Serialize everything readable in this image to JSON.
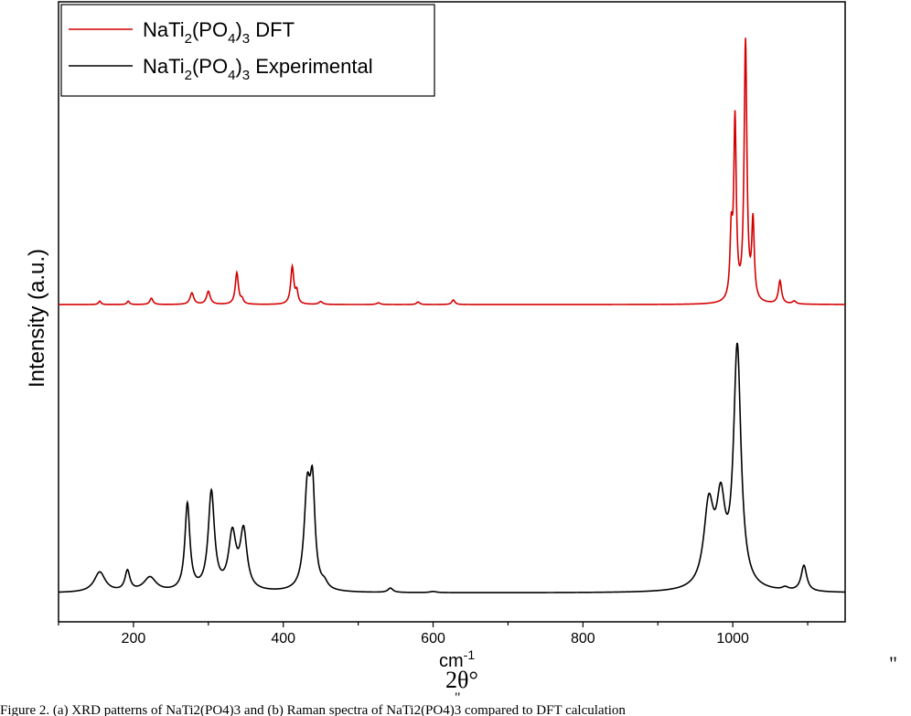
{
  "chart_data": {
    "type": "line",
    "xlabel": "cm",
    "xlabel_sup": "-1",
    "ylabel": "Intensity (a.u.)",
    "xlim": [
      100,
      1150
    ],
    "ylim": [
      0,
      2.15
    ],
    "x_ticks": [
      200,
      400,
      600,
      800,
      1000
    ],
    "y_ticks_labeled": false,
    "grid": false,
    "legend_position": "top-left",
    "series": [
      {
        "name_parts": [
          "NaTi",
          "2",
          "(PO",
          "4",
          ")",
          "3",
          " DFT"
        ],
        "color": "#d40000",
        "baseline": 1.1,
        "peaks": [
          [
            155,
            0.012,
            2
          ],
          [
            193,
            0.012,
            2
          ],
          [
            224,
            0.022,
            2.5
          ],
          [
            278,
            0.04,
            3
          ],
          [
            300,
            0.045,
            3
          ],
          [
            338,
            0.11,
            2.5
          ],
          [
            345,
            0.015,
            2
          ],
          [
            412,
            0.13,
            2.5
          ],
          [
            418,
            0.04,
            2
          ],
          [
            450,
            0.01,
            3
          ],
          [
            527,
            0.006,
            3
          ],
          [
            580,
            0.009,
            2.5
          ],
          [
            627,
            0.016,
            2.5
          ],
          [
            998,
            0.22,
            2
          ],
          [
            1003,
            0.62,
            2
          ],
          [
            1017,
            0.9,
            2.2
          ],
          [
            1027,
            0.27,
            2
          ],
          [
            1063,
            0.08,
            2.5
          ],
          [
            1082,
            0.01,
            3
          ]
        ],
        "points": [
          [
            100,
            1.1
          ],
          [
            155,
            1.112
          ],
          [
            193,
            1.112
          ],
          [
            224,
            1.122
          ],
          [
            278,
            1.14
          ],
          [
            300,
            1.145
          ],
          [
            338,
            1.21
          ],
          [
            412,
            1.23
          ],
          [
            627,
            1.116
          ],
          [
            998,
            1.32
          ],
          [
            1003,
            1.72
          ],
          [
            1017,
            2.0
          ],
          [
            1027,
            1.37
          ],
          [
            1063,
            1.18
          ],
          [
            1150,
            1.1
          ]
        ]
      },
      {
        "name_parts": [
          "NaTi",
          "2",
          "(PO",
          "4",
          ")",
          "3",
          " Experimental"
        ],
        "color": "#000000",
        "baseline": 0.1,
        "peaks": [
          [
            155,
            0.07,
            9
          ],
          [
            192,
            0.07,
            4
          ],
          [
            222,
            0.05,
            10
          ],
          [
            272,
            0.3,
            4
          ],
          [
            304,
            0.34,
            5
          ],
          [
            332,
            0.19,
            6
          ],
          [
            347,
            0.2,
            5.5
          ],
          [
            432,
            0.33,
            5
          ],
          [
            439,
            0.32,
            4
          ],
          [
            455,
            0.02,
            5
          ],
          [
            543,
            0.015,
            4
          ],
          [
            600,
            0.004,
            5
          ],
          [
            968,
            0.28,
            8
          ],
          [
            984,
            0.27,
            7
          ],
          [
            1006,
            0.83,
            6
          ],
          [
            1070,
            0.01,
            5
          ],
          [
            1095,
            0.09,
            4.5
          ]
        ],
        "points": [
          [
            100,
            0.1
          ],
          [
            155,
            0.17
          ],
          [
            192,
            0.17
          ],
          [
            222,
            0.15
          ],
          [
            272,
            0.4
          ],
          [
            304,
            0.44
          ],
          [
            332,
            0.29
          ],
          [
            347,
            0.3
          ],
          [
            432,
            0.43
          ],
          [
            439,
            0.42
          ],
          [
            543,
            0.115
          ],
          [
            968,
            0.38
          ],
          [
            984,
            0.37
          ],
          [
            1006,
            0.93
          ],
          [
            1095,
            0.19
          ],
          [
            1150,
            0.1
          ]
        ]
      }
    ]
  },
  "stray_text": {
    "quote_right": "\"",
    "two_theta": "2θ°",
    "quote_under": "\""
  },
  "caption": "Figure 2. (a) XRD patterns of NaTi2(PO4)3 and (b) Raman spectra of NaTi2(PO4)3 compared to DFT calculation"
}
